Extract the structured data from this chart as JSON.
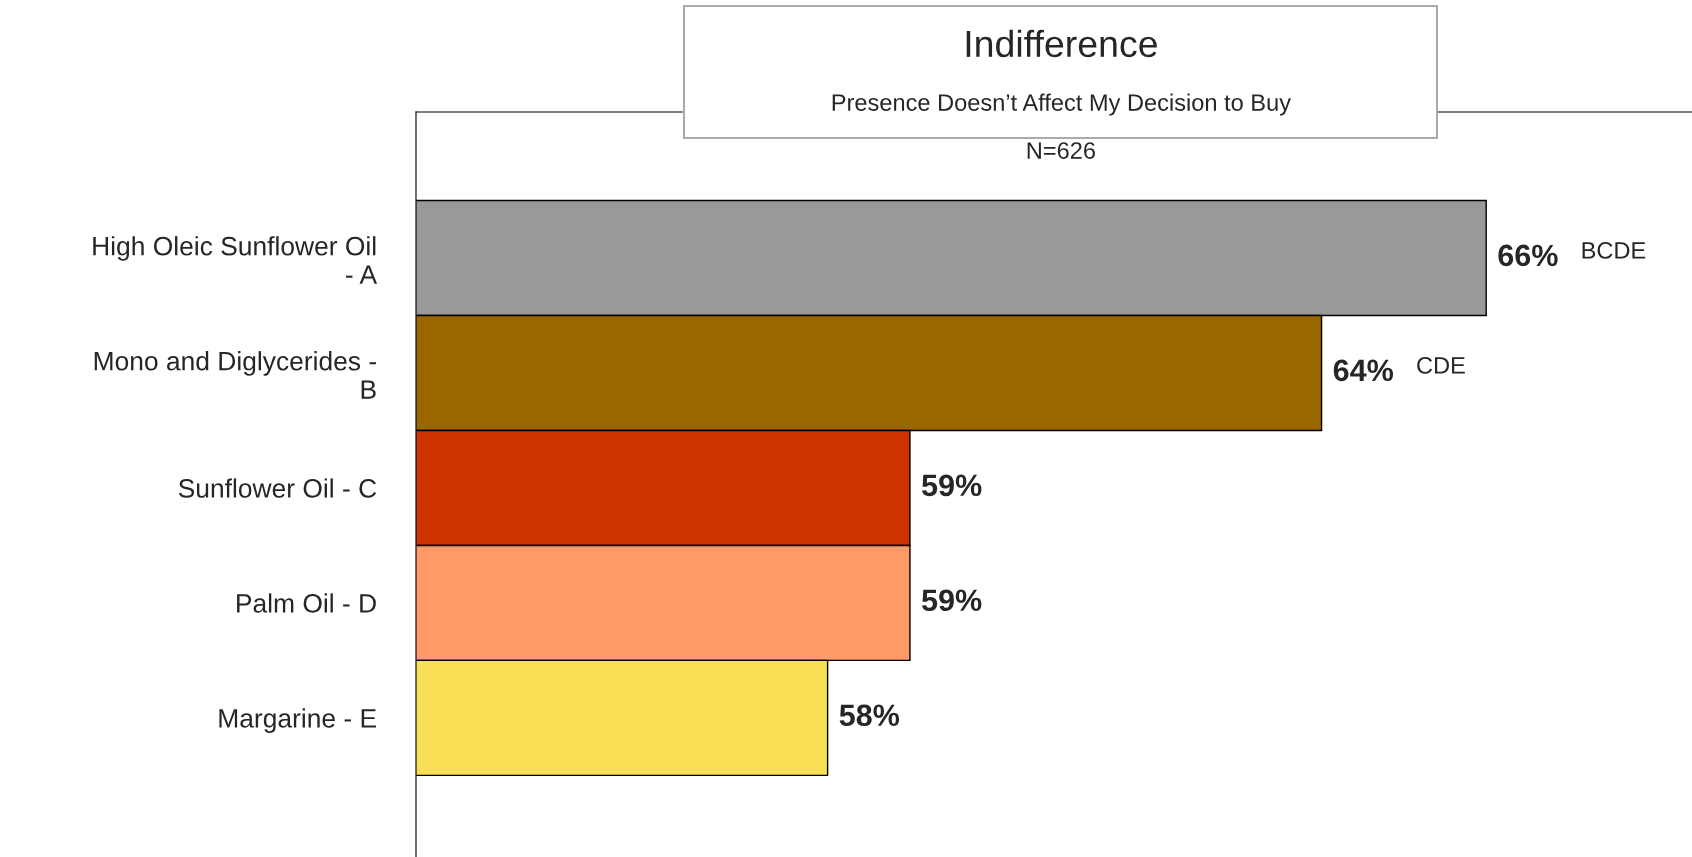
{
  "chart_data": {
    "type": "bar",
    "orientation": "horizontal",
    "title": "Indifference",
    "subtitle": "Presence Doesn’t Affect My Decision to Buy",
    "categories": [
      "High Oleic Sunflower Oil\n- A",
      "Mono and Diglycerides -\nB",
      "Sunflower Oil - C",
      "Palm Oil - D",
      "Margarine - E"
    ],
    "values": [
      66,
      64,
      59,
      59,
      58
    ],
    "value_labels": [
      "66%",
      "64%",
      "59%",
      "59%",
      "58%"
    ],
    "colors": [
      "#999999",
      "#996600",
      "#cc3300",
      "#ff9966",
      "#f8df55"
    ],
    "xlim": [
      53,
      68.5
    ],
    "tick_labels": "y",
    "grid": false,
    "legend": false,
    "annotations": [
      "N=626",
      "BCDE",
      "CDE"
    ]
  }
}
